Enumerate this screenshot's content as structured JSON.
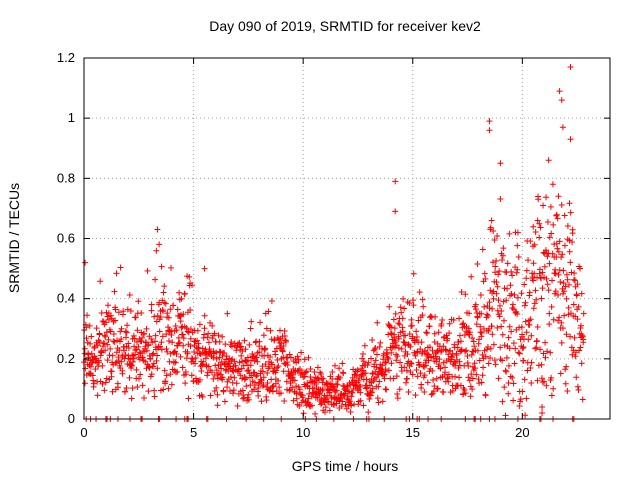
{
  "chart_data": {
    "type": "scatter",
    "title": "Day 090 of 2019, SRMTID for receiver kev2",
    "xlabel": "GPS time / hours",
    "ylabel": "SRMTID / TECUs",
    "xlim": [
      0,
      24
    ],
    "ylim": [
      0,
      1.2
    ],
    "x_ticks": [
      0,
      5,
      10,
      15,
      20
    ],
    "y_ticks": [
      0,
      0.2,
      0.4,
      0.6,
      0.8,
      1,
      1.2
    ],
    "x_tick_labels": [
      "0",
      "5",
      "10",
      "15",
      "20"
    ],
    "y_tick_labels": [
      "0",
      "0.2",
      "0.4",
      "0.6",
      "0.8",
      "1",
      "1.2"
    ],
    "grid": true,
    "marker": "+",
    "color": "#ff0000",
    "trend": [
      {
        "x": 0.0,
        "y": 0.25
      },
      {
        "x": 0.5,
        "y": 0.18
      },
      {
        "x": 1.0,
        "y": 0.28
      },
      {
        "x": 1.5,
        "y": 0.25
      },
      {
        "x": 2.0,
        "y": 0.22
      },
      {
        "x": 2.5,
        "y": 0.22
      },
      {
        "x": 3.0,
        "y": 0.24
      },
      {
        "x": 3.5,
        "y": 0.27
      },
      {
        "x": 4.0,
        "y": 0.26
      },
      {
        "x": 4.5,
        "y": 0.27
      },
      {
        "x": 5.0,
        "y": 0.2
      },
      {
        "x": 5.5,
        "y": 0.2
      },
      {
        "x": 6.0,
        "y": 0.17
      },
      {
        "x": 6.5,
        "y": 0.16
      },
      {
        "x": 7.0,
        "y": 0.16
      },
      {
        "x": 7.5,
        "y": 0.15
      },
      {
        "x": 8.0,
        "y": 0.17
      },
      {
        "x": 8.5,
        "y": 0.18
      },
      {
        "x": 9.0,
        "y": 0.17
      },
      {
        "x": 9.5,
        "y": 0.14
      },
      {
        "x": 10.0,
        "y": 0.11
      },
      {
        "x": 10.5,
        "y": 0.09
      },
      {
        "x": 11.0,
        "y": 0.09
      },
      {
        "x": 11.5,
        "y": 0.09
      },
      {
        "x": 12.0,
        "y": 0.09
      },
      {
        "x": 12.5,
        "y": 0.11
      },
      {
        "x": 13.0,
        "y": 0.13
      },
      {
        "x": 13.5,
        "y": 0.18
      },
      {
        "x": 14.0,
        "y": 0.22
      },
      {
        "x": 14.5,
        "y": 0.25
      },
      {
        "x": 15.0,
        "y": 0.24
      },
      {
        "x": 15.5,
        "y": 0.23
      },
      {
        "x": 16.0,
        "y": 0.22
      },
      {
        "x": 16.5,
        "y": 0.21
      },
      {
        "x": 17.0,
        "y": 0.19
      },
      {
        "x": 17.5,
        "y": 0.21
      },
      {
        "x": 18.0,
        "y": 0.25
      },
      {
        "x": 18.5,
        "y": 0.3
      },
      {
        "x": 19.0,
        "y": 0.36
      },
      {
        "x": 19.5,
        "y": 0.33
      },
      {
        "x": 20.0,
        "y": 0.3
      },
      {
        "x": 20.5,
        "y": 0.35
      },
      {
        "x": 21.0,
        "y": 0.42
      },
      {
        "x": 21.5,
        "y": 0.48
      },
      {
        "x": 22.0,
        "y": 0.4
      },
      {
        "x": 22.5,
        "y": 0.28
      },
      {
        "x": 22.8,
        "y": 0.24
      }
    ],
    "notable_points": [
      {
        "x": 0.05,
        "y": 0.52
      },
      {
        "x": 3.35,
        "y": 0.63
      },
      {
        "x": 5.5,
        "y": 0.5
      },
      {
        "x": 14.2,
        "y": 0.79
      },
      {
        "x": 14.2,
        "y": 0.69
      },
      {
        "x": 18.5,
        "y": 0.99
      },
      {
        "x": 18.5,
        "y": 0.96
      },
      {
        "x": 19.0,
        "y": 0.85
      },
      {
        "x": 18.6,
        "y": 0.66
      },
      {
        "x": 20.7,
        "y": 0.66
      },
      {
        "x": 21.2,
        "y": 0.86
      },
      {
        "x": 21.7,
        "y": 1.09
      },
      {
        "x": 21.8,
        "y": 1.06
      },
      {
        "x": 21.85,
        "y": 0.97
      },
      {
        "x": 22.2,
        "y": 1.17
      },
      {
        "x": 22.2,
        "y": 0.93
      },
      {
        "x": 20.9,
        "y": 0.04
      },
      {
        "x": 20.9,
        "y": 0.02
      }
    ],
    "zero_points_x": [
      0.1,
      0.3,
      0.55,
      1.0,
      1.05,
      1.2,
      1.55,
      2.1,
      2.6,
      2.65,
      3.4,
      3.45,
      4.2,
      4.6,
      4.7,
      4.75,
      5.6,
      5.65,
      6.5,
      7.4,
      8.2,
      9.0,
      10.1,
      10.6,
      11.4,
      12.3,
      12.9,
      13.0,
      13.7,
      14.7,
      14.85,
      15.2,
      15.3,
      15.7,
      16.3,
      17.4,
      17.8,
      17.85,
      18.1,
      18.5,
      18.75,
      19.8,
      20.8,
      20.85,
      21.4,
      22.3,
      22.35
    ]
  }
}
